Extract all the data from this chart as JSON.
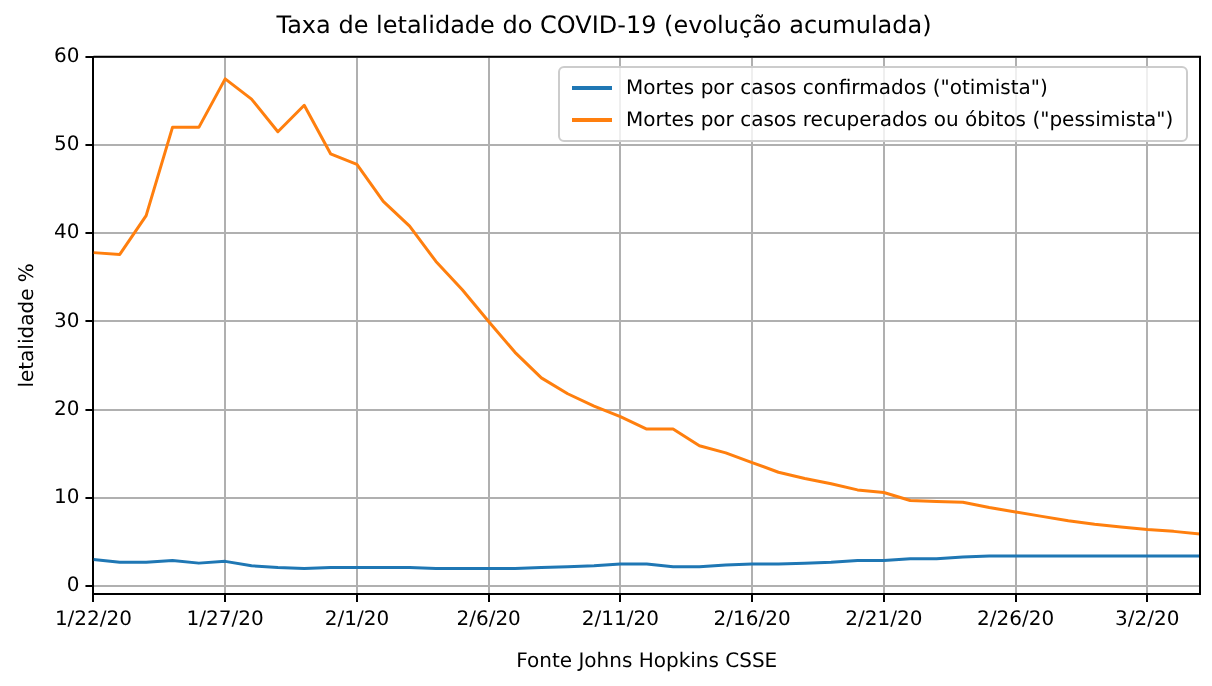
{
  "chart_data": {
    "type": "line",
    "title": "Taxa de letalidade do COVID-19 (evolução acumulada)",
    "ylabel": "letalidade %",
    "annotations": [
      "Fonte Johns Hopkins CSSE"
    ],
    "x": [
      "--01-22",
      "--01-23",
      "--01-24",
      "--01-25",
      "--01-26",
      "--01-27",
      "--01-28",
      "--01-29",
      "--01-30",
      "--01-31",
      "--02-01",
      "--02-02",
      "--02-03",
      "--02-04",
      "--02-05",
      "--02-06",
      "--02-07",
      "--02-08",
      "--02-09",
      "--02-10",
      "--02-11",
      "--02-12",
      "--02-13",
      "--02-14",
      "--02-15",
      "--02-16",
      "--02-17",
      "--02-18",
      "--02-19",
      "--02-20",
      "--02-21",
      "--02-22",
      "--02-23",
      "--02-24",
      "--02-25",
      "--02-26",
      "--02-27",
      "--02-28",
      "--02-29",
      "--03-01",
      "--03-02",
      "--03-03",
      "--03-04"
    ],
    "series": [
      {
        "name": "Mortes por casos confirmados (\"otimista\")",
        "color": "#1f77b4",
        "values": [
          3.0,
          2.7,
          2.7,
          2.9,
          2.6,
          2.8,
          2.3,
          2.1,
          2.0,
          2.1,
          2.1,
          2.1,
          2.1,
          2.0,
          2.0,
          2.0,
          2.0,
          2.1,
          2.2,
          2.3,
          2.5,
          2.5,
          2.2,
          2.2,
          2.4,
          2.5,
          2.5,
          2.6,
          2.7,
          2.9,
          2.9,
          3.1,
          3.1,
          3.3,
          3.4,
          3.4,
          3.4,
          3.4,
          3.4,
          3.4,
          3.4,
          3.4,
          3.4
        ]
      },
      {
        "name": "Mortes por casos recuperados ou óbitos (\"pessimista\")",
        "color": "#ff7f0e",
        "values": [
          37.8,
          37.6,
          42,
          52,
          52,
          57.5,
          55.2,
          51.5,
          54.5,
          49,
          47.8,
          43.6,
          40.8,
          36.8,
          33.6,
          30,
          26.5,
          23.6,
          21.8,
          20.4,
          19.2,
          17.8,
          17.8,
          15.9,
          15.1,
          14,
          12.9,
          12.2,
          11.6,
          10.9,
          10.6,
          9.7,
          9.6,
          9.5,
          8.9,
          8.4,
          7.9,
          7.4,
          7.0,
          6.7,
          6.4,
          6.2,
          5.9
        ]
      }
    ],
    "xlim": [
      "--01-22",
      "--03-04"
    ],
    "xticks": [
      {
        "value": "--01-22",
        "label": "1/22/20"
      },
      {
        "value": "--01-27",
        "label": "1/27/20"
      },
      {
        "value": "--02-01",
        "label": "2/1/20"
      },
      {
        "value": "--02-06",
        "label": "2/6/20"
      },
      {
        "value": "--02-11",
        "label": "2/11/20"
      },
      {
        "value": "--02-16",
        "label": "2/16/20"
      },
      {
        "value": "--02-21",
        "label": "2/21/20"
      },
      {
        "value": "--02-26",
        "label": "2/26/20"
      },
      {
        "value": "--03-02",
        "label": "3/2/20"
      }
    ],
    "ylim": [
      -0.9,
      60
    ],
    "yticks": [
      0,
      10,
      20,
      30,
      40,
      50,
      60
    ],
    "grid": true,
    "legend": "top right",
    "marker": "none",
    "line_style": "solid"
  }
}
